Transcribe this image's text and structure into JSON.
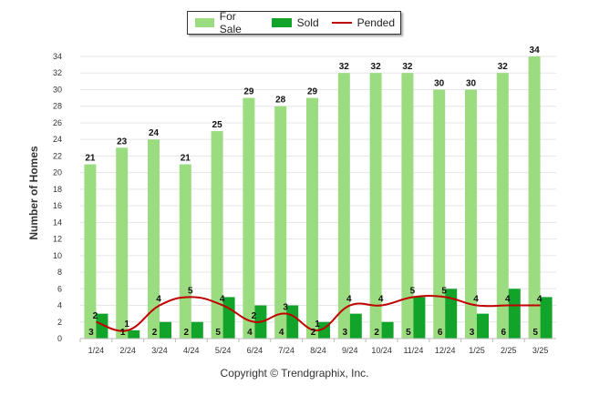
{
  "legend": {
    "for_sale": "For Sale",
    "sold": "Sold",
    "pended": "Pended"
  },
  "copyright": "Copyright © Trendgraphix, Inc.",
  "chart_data": {
    "type": "bar",
    "categories": [
      "1/24",
      "2/24",
      "3/24",
      "4/24",
      "5/24",
      "6/24",
      "7/24",
      "8/24",
      "9/24",
      "10/24",
      "11/24",
      "12/24",
      "1/25",
      "2/25",
      "3/25"
    ],
    "series": [
      {
        "name": "For Sale",
        "type": "bar",
        "color": "#9bdc80",
        "values": [
          21,
          23,
          24,
          21,
          25,
          29,
          28,
          29,
          32,
          32,
          32,
          30,
          30,
          32,
          34
        ]
      },
      {
        "name": "Sold",
        "type": "bar",
        "color": "#11a32a",
        "values": [
          3,
          1,
          2,
          2,
          5,
          4,
          4,
          2,
          3,
          2,
          5,
          6,
          3,
          6,
          5
        ]
      },
      {
        "name": "Pended",
        "type": "line",
        "color": "#c00000",
        "values": [
          2,
          1,
          4,
          5,
          4,
          2,
          3,
          1,
          4,
          4,
          5,
          5,
          4,
          4,
          4
        ]
      }
    ],
    "xlabel": "",
    "ylabel": "Number of Homes",
    "ylim": [
      0,
      34
    ],
    "yticks": [
      0,
      2,
      4,
      6,
      8,
      10,
      12,
      14,
      16,
      18,
      20,
      22,
      24,
      26,
      28,
      30,
      32,
      34
    ],
    "grid": true,
    "legend_position": "top-center"
  }
}
